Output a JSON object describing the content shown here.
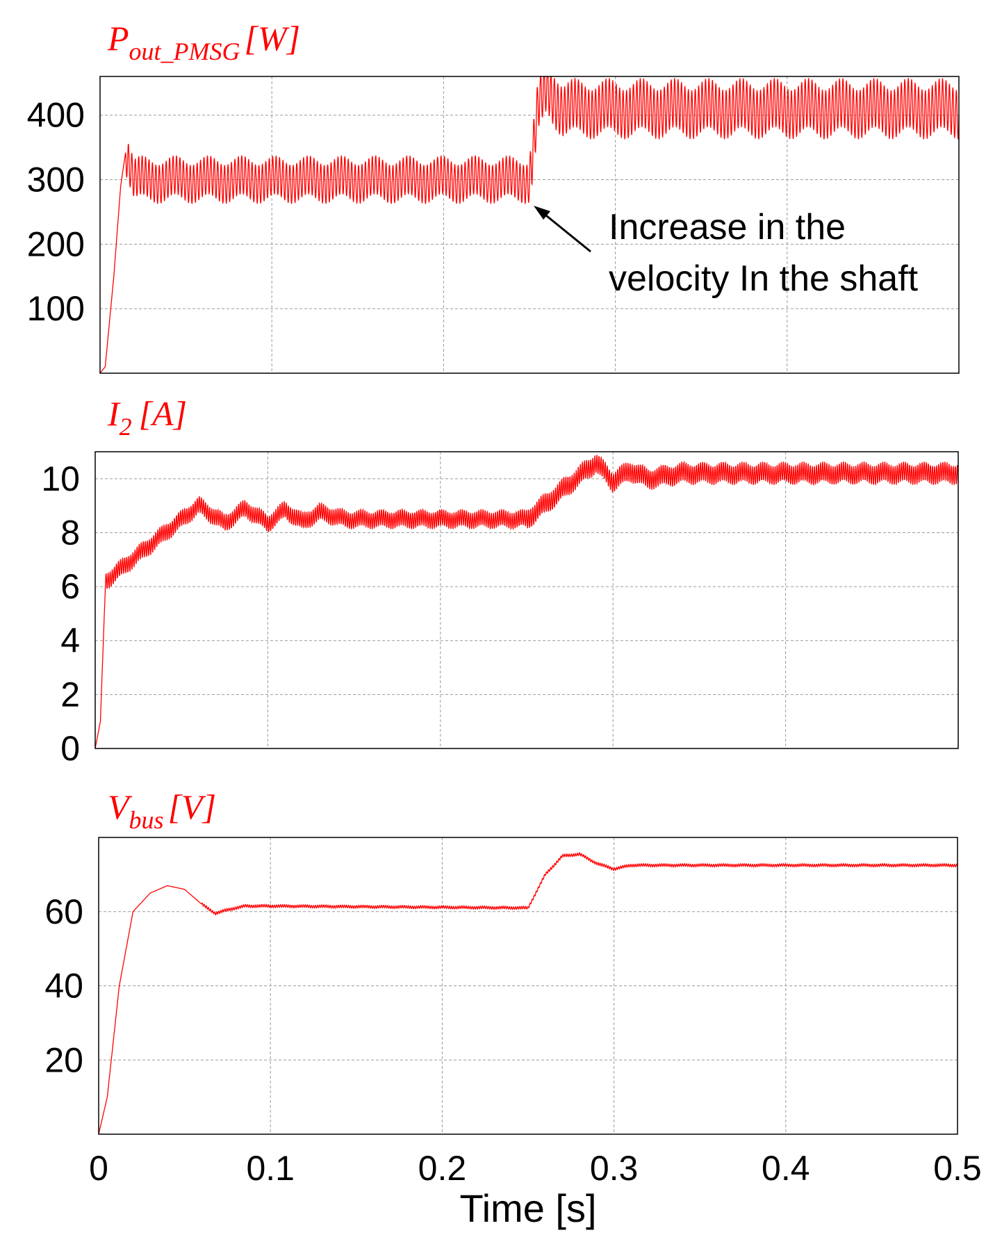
{
  "chart_data": [
    {
      "type": "line",
      "title_main": "P",
      "title_sub": "out_PMSG",
      "title_unit": "[W]",
      "xlim": [
        0,
        0.5
      ],
      "ylim": [
        0,
        460
      ],
      "yticks": [
        100,
        200,
        300,
        400
      ],
      "ytick_labels": [
        "100",
        "200",
        "300",
        "400"
      ],
      "grid": true,
      "color": "#ff0000",
      "series": [
        {
          "name": "P_out_PMSG",
          "keypoints": [
            [
              0,
              0
            ],
            [
              0.003,
              10
            ],
            [
              0.008,
              150
            ],
            [
              0.012,
              290
            ],
            [
              0.015,
              345
            ],
            [
              0.02,
              300
            ],
            [
              0.25,
              300
            ],
            [
              0.255,
              410
            ],
            [
              0.26,
              440
            ],
            [
              0.27,
              410
            ],
            [
              0.5,
              410
            ]
          ],
          "ripple": {
            "from": 0.015,
            "amplitude": [
              30,
              38
            ],
            "period": 0.002
          }
        }
      ],
      "annotation": {
        "lines": [
          "Increase in the",
          "velocity In the shaft"
        ],
        "arrow_to": [
          0.252,
          270
        ]
      }
    },
    {
      "type": "line",
      "title_main": "I",
      "title_sub": "2",
      "title_unit": "[A]",
      "xlim": [
        0,
        0.5
      ],
      "ylim": [
        0,
        11
      ],
      "yticks": [
        0,
        2,
        4,
        6,
        8,
        10
      ],
      "ytick_labels": [
        "0",
        "2",
        "4",
        "6",
        "8",
        "10"
      ],
      "grid": true,
      "color": "#ff0000",
      "series": [
        {
          "name": "I_2",
          "keypoints": [
            [
              0,
              0
            ],
            [
              0.003,
              1
            ],
            [
              0.006,
              6.2
            ],
            [
              0.06,
              9
            ],
            [
              0.075,
              8.35
            ],
            [
              0.087,
              8.9
            ],
            [
              0.1,
              8.35
            ],
            [
              0.11,
              8.85
            ],
            [
              0.12,
              8.4
            ],
            [
              0.13,
              8.75
            ],
            [
              0.145,
              8.5
            ],
            [
              0.25,
              8.5
            ],
            [
              0.29,
              10.6
            ],
            [
              0.3,
              9.9
            ],
            [
              0.31,
              10.3
            ],
            [
              0.32,
              10.0
            ],
            [
              0.34,
              10.2
            ],
            [
              0.5,
              10.2
            ]
          ],
          "ripple": {
            "from": 0.006,
            "amplitude": [
              0.3,
              0.35
            ],
            "period": 0.0012
          }
        }
      ]
    },
    {
      "type": "line",
      "title_main": "V",
      "title_sub": "bus",
      "title_unit": "[V]",
      "xlabel": "Time [s]",
      "xlim": [
        0,
        0.5
      ],
      "ylim": [
        0,
        80
      ],
      "xticks": [
        0,
        0.1,
        0.2,
        0.3,
        0.4,
        0.5
      ],
      "xtick_labels": [
        "0",
        "0.1",
        "0.2",
        "0.3",
        "0.4",
        "0.5"
      ],
      "yticks": [
        20,
        40,
        60
      ],
      "ytick_labels": [
        "20",
        "40",
        "60"
      ],
      "grid": true,
      "color": "#ff0000",
      "series": [
        {
          "name": "V_bus",
          "keypoints": [
            [
              0,
              0
            ],
            [
              0.005,
              10
            ],
            [
              0.012,
              40
            ],
            [
              0.02,
              60
            ],
            [
              0.03,
              65
            ],
            [
              0.04,
              67
            ],
            [
              0.05,
              66
            ],
            [
              0.06,
              62
            ],
            [
              0.068,
              59.5
            ],
            [
              0.075,
              60.5
            ],
            [
              0.085,
              61.5
            ],
            [
              0.1,
              61.5
            ],
            [
              0.25,
              61
            ],
            [
              0.26,
              70
            ],
            [
              0.27,
              75
            ],
            [
              0.28,
              75.5
            ],
            [
              0.29,
              73
            ],
            [
              0.3,
              71.5
            ],
            [
              0.31,
              72.5
            ],
            [
              0.5,
              72.5
            ]
          ],
          "ripple": {
            "from": 0.06,
            "amplitude": [
              0.35,
              0.35
            ],
            "period": 0.0012
          }
        }
      ]
    }
  ]
}
